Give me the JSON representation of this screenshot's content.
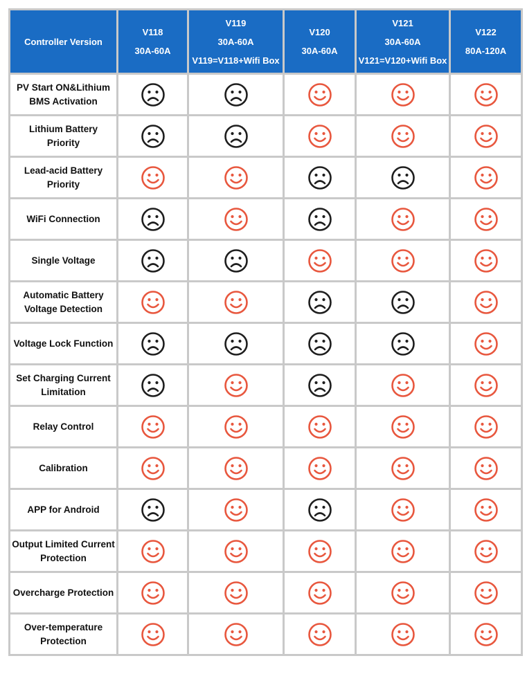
{
  "table": {
    "corner": "Controller Version",
    "columns": [
      {
        "version": "V118",
        "current": "30A-60A"
      },
      {
        "version": "V119",
        "current": "30A-60A",
        "note": "V119=V118+Wifi Box"
      },
      {
        "version": "V120",
        "current": "30A-60A"
      },
      {
        "version": "V121",
        "current": "30A-60A",
        "note": "V121=V120+Wifi Box"
      },
      {
        "version": "V122",
        "current": "80A-120A"
      }
    ],
    "rows": [
      {
        "feature": "PV Start ON&Lithium BMS Activation",
        "support": [
          false,
          false,
          true,
          true,
          true
        ]
      },
      {
        "feature": "Lithium Battery Priority",
        "support": [
          false,
          false,
          true,
          true,
          true
        ]
      },
      {
        "feature": "Lead-acid Battery Priority",
        "support": [
          true,
          true,
          false,
          false,
          true
        ]
      },
      {
        "feature": "WiFi Connection",
        "support": [
          false,
          true,
          false,
          true,
          true
        ]
      },
      {
        "feature": "Single Voltage",
        "support": [
          false,
          false,
          true,
          true,
          true
        ]
      },
      {
        "feature": "Automatic Battery Voltage Detection",
        "support": [
          true,
          true,
          false,
          false,
          true
        ]
      },
      {
        "feature": "Voltage Lock Function",
        "support": [
          false,
          false,
          false,
          false,
          true
        ]
      },
      {
        "feature": "Set Charging Current Limitation",
        "support": [
          false,
          true,
          false,
          true,
          true
        ]
      },
      {
        "feature": "Relay Control",
        "support": [
          true,
          true,
          true,
          true,
          true
        ]
      },
      {
        "feature": "Calibration",
        "support": [
          true,
          true,
          true,
          true,
          true
        ]
      },
      {
        "feature": "APP for Android",
        "support": [
          false,
          true,
          false,
          true,
          true
        ]
      },
      {
        "feature": "Output Limited Current Protection",
        "support": [
          true,
          true,
          true,
          true,
          true
        ]
      },
      {
        "feature": "Overcharge Protection",
        "support": [
          true,
          true,
          true,
          true,
          true
        ]
      },
      {
        "feature": "Over-temperature Protection",
        "support": [
          true,
          true,
          true,
          true,
          true
        ]
      }
    ]
  }
}
